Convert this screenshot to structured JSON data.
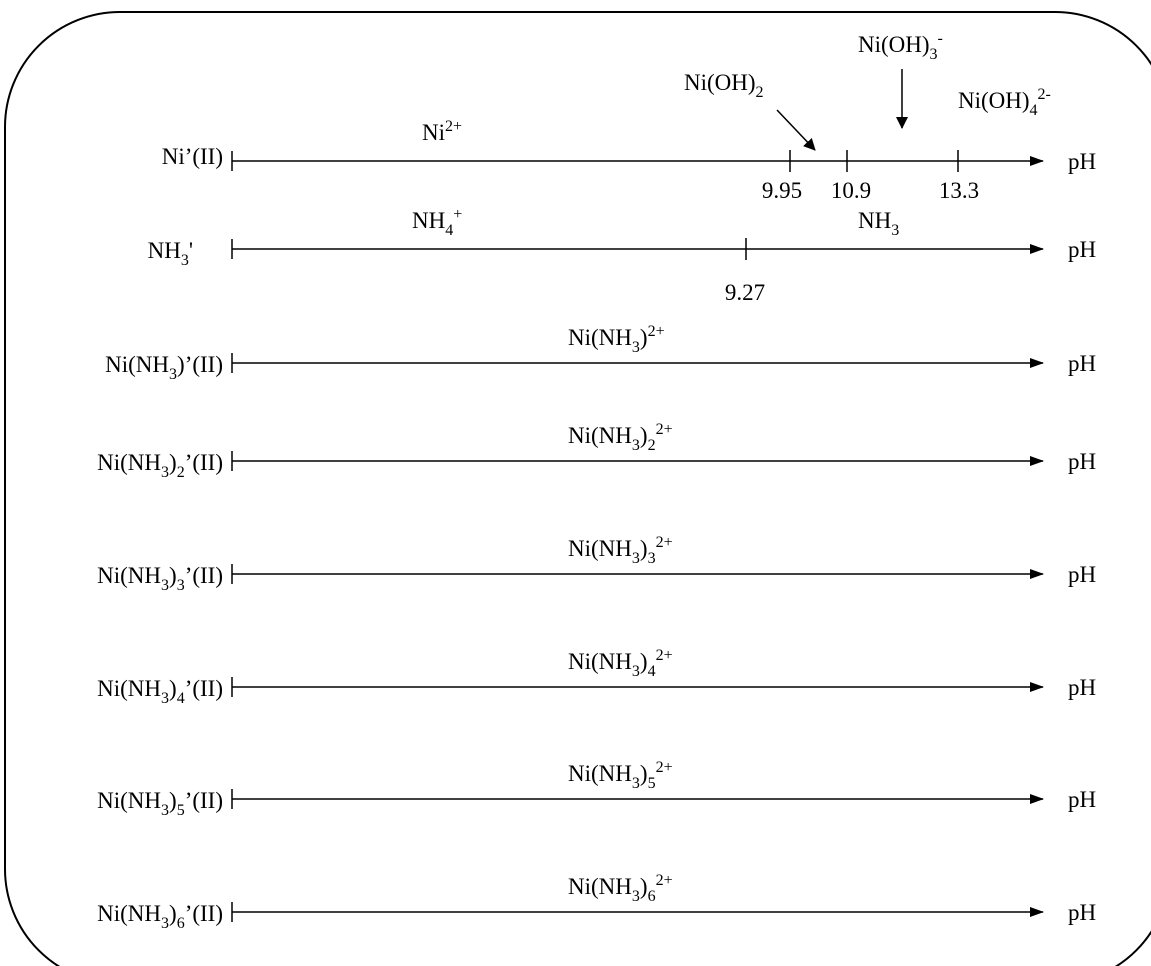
{
  "axis_label": "pH",
  "rows": [
    {
      "left_label": "Ni’(II)",
      "tick_values": [
        "9.95",
        "10.9",
        "13.3"
      ],
      "species": {
        "ni2": "Ni2+",
        "ni_oh2": "Ni(OH)2",
        "ni_oh3": "Ni(OH)3-",
        "ni_oh4": "Ni(OH)42-"
      }
    },
    {
      "left_label": "NH3'",
      "tick_values": [
        "9.27"
      ],
      "species": {
        "nh4": "NH4+",
        "nh3": "NH3"
      }
    },
    {
      "left_label": "Ni(NH3)’(II)",
      "species_label": "Ni(NH3)2+"
    },
    {
      "left_label": "Ni(NH3)2’(II)",
      "species_label": "Ni(NH3)22+"
    },
    {
      "left_label": "Ni(NH3)3’(II)",
      "species_label": "Ni(NH3)32+"
    },
    {
      "left_label": "Ni(NH3)4’(II)",
      "species_label": "Ni(NH3)42+"
    },
    {
      "left_label": "Ni(NH3)5’(II)",
      "species_label": "Ni(NH3)52+"
    },
    {
      "left_label": "Ni(NH3)6’(II)",
      "species_label": "Ni(NH3)62+"
    }
  ]
}
